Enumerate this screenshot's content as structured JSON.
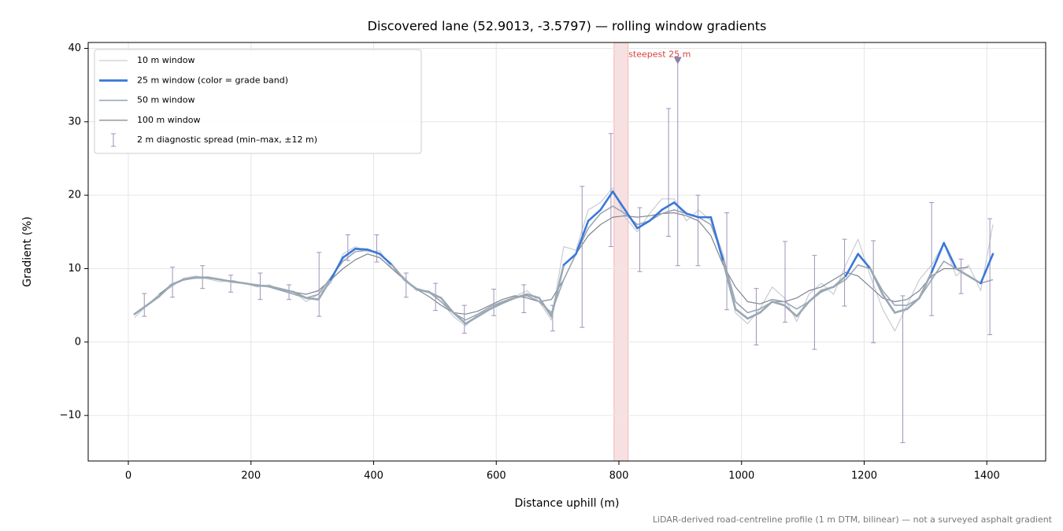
{
  "chart_data": {
    "type": "line",
    "title": "Discovered lane (52.9013, -3.5797) — rolling window gradients",
    "x_label": "Distance uphill (m)",
    "y_label": "Gradient (%)",
    "footnote": "LiDAR-derived road-centreline profile (1 m DTM, bilinear) — not a surveyed asphalt gradient",
    "xlim": [
      -65.5,
      1496
    ],
    "ylim": [
      -16.2,
      40.8
    ],
    "xticks": [
      0,
      200,
      400,
      600,
      800,
      1000,
      1200,
      1400
    ],
    "yticks": [
      {
        "value": -10,
        "label": "−10"
      },
      0,
      10,
      20,
      30,
      40
    ],
    "grid": true,
    "legend": "upper left",
    "x": [
      10,
      30,
      50,
      70,
      90,
      110,
      130,
      150,
      170,
      190,
      210,
      230,
      250,
      270,
      290,
      310,
      330,
      350,
      370,
      390,
      410,
      430,
      450,
      470,
      490,
      510,
      530,
      550,
      570,
      590,
      610,
      630,
      650,
      670,
      690,
      710,
      730,
      750,
      770,
      790,
      810,
      830,
      850,
      870,
      890,
      910,
      930,
      950,
      970,
      990,
      1010,
      1030,
      1050,
      1070,
      1090,
      1110,
      1130,
      1150,
      1170,
      1190,
      1210,
      1230,
      1250,
      1270,
      1290,
      1310,
      1330,
      1350,
      1370,
      1390,
      1410
    ],
    "series": [
      {
        "name": "10 m window",
        "color": "#c6cdd6",
        "values": [
          3.3,
          5.0,
          6.5,
          7.5,
          8.7,
          9.0,
          8.6,
          8.2,
          8.4,
          8.0,
          7.5,
          7.8,
          7.0,
          6.9,
          5.5,
          6.5,
          8.0,
          12.0,
          13.0,
          12.3,
          12.4,
          10.0,
          8.8,
          7.0,
          7.0,
          5.5,
          3.5,
          2.2,
          3.8,
          4.5,
          5.5,
          6.2,
          7.0,
          5.5,
          3.0,
          13.0,
          12.5,
          18.0,
          19.0,
          21.0,
          17.0,
          15.0,
          17.5,
          19.5,
          19.5,
          16.5,
          18.0,
          16.5,
          12.0,
          4.0,
          2.5,
          4.5,
          7.5,
          6.0,
          2.8,
          6.5,
          8.0,
          6.5,
          10.5,
          14.0,
          9.0,
          4.5,
          1.5,
          5.0,
          8.5,
          10.5,
          13.5,
          9.0,
          10.5,
          7.0,
          16.0
        ]
      },
      {
        "name": "100 m window",
        "color": "#7f8590",
        "values": [
          null,
          null,
          6.5,
          7.8,
          8.5,
          8.7,
          8.7,
          8.5,
          8.3,
          8.0,
          7.8,
          7.6,
          7.2,
          6.8,
          6.5,
          7.0,
          8.5,
          10.0,
          11.2,
          12.0,
          11.5,
          10.0,
          8.5,
          7.2,
          6.2,
          5.0,
          4.0,
          3.8,
          4.2,
          5.0,
          5.8,
          6.3,
          6.0,
          5.5,
          5.8,
          8.5,
          12.0,
          14.5,
          16.0,
          17.0,
          17.2,
          17.0,
          17.2,
          17.5,
          17.6,
          17.2,
          16.5,
          14.5,
          10.5,
          7.5,
          5.5,
          5.2,
          5.8,
          5.5,
          6.0,
          7.0,
          7.5,
          8.5,
          9.5,
          9.0,
          7.5,
          6.0,
          5.5,
          5.8,
          7.0,
          9.0,
          10.0,
          10.0,
          10.2,
          null,
          null
        ]
      },
      {
        "name": "50 m window",
        "color": "#9ba7b5",
        "values": [
          3.8,
          5.0,
          6.3,
          7.7,
          8.5,
          8.8,
          8.8,
          8.5,
          8.2,
          8.0,
          7.8,
          7.5,
          7.0,
          6.5,
          6.0,
          6.5,
          8.8,
          11.0,
          12.3,
          12.5,
          12.0,
          10.5,
          8.5,
          7.3,
          6.8,
          5.5,
          4.0,
          3.0,
          3.8,
          4.8,
          5.5,
          6.0,
          6.3,
          5.5,
          4.0,
          8.5,
          12.0,
          15.5,
          17.5,
          18.5,
          17.5,
          16.0,
          16.5,
          17.5,
          18.0,
          17.5,
          17.0,
          16.0,
          11.5,
          5.5,
          4.0,
          4.5,
          5.5,
          5.5,
          4.5,
          5.5,
          6.8,
          7.5,
          8.5,
          10.5,
          10.0,
          7.0,
          5.0,
          5.0,
          6.0,
          8.5,
          11.0,
          10.0,
          9.0,
          8.0,
          8.5
        ]
      },
      {
        "name": "25 m window (color = grade band)",
        "color": "#3a78d8",
        "base_color": "#9aa8b4",
        "grade_bands": [
          {
            "from": 10,
            "color": "#3a78d8"
          },
          {
            "from": 20,
            "color": "#e8900c"
          }
        ],
        "values": [
          3.8,
          5.0,
          6.2,
          7.8,
          8.5,
          8.8,
          8.8,
          8.5,
          8.2,
          8.0,
          7.7,
          7.6,
          7.2,
          6.8,
          6.0,
          5.8,
          8.5,
          11.5,
          12.7,
          12.6,
          12.0,
          10.5,
          8.5,
          7.2,
          6.8,
          6.0,
          4.0,
          2.5,
          3.5,
          4.5,
          5.3,
          6.0,
          6.5,
          6.0,
          3.5,
          10.5,
          12.0,
          16.5,
          18.0,
          20.5,
          18.0,
          15.5,
          16.5,
          18.0,
          19.0,
          17.5,
          17.0,
          17.0,
          11.0,
          4.5,
          3.2,
          4.0,
          5.5,
          5.0,
          3.5,
          5.5,
          7.0,
          7.5,
          9.0,
          12.0,
          10.0,
          6.5,
          4.0,
          4.5,
          6.0,
          9.5,
          13.5,
          10.0,
          9.0,
          8.0,
          12.0
        ]
      }
    ],
    "legend_order": [
      0,
      3,
      2,
      1
    ],
    "spread": {
      "name": "2 m diagnostic spread (min–max, ±12 m)",
      "color": "#9e93b8",
      "x": [
        26,
        72,
        121,
        167,
        215,
        262,
        311,
        358,
        405,
        453,
        501,
        548,
        596,
        645,
        692,
        740,
        787,
        834,
        881,
        896,
        929,
        976,
        1024,
        1071,
        1119,
        1168,
        1215,
        1263,
        1310,
        1358,
        1405
      ],
      "low": [
        3.5,
        6.1,
        7.3,
        6.8,
        5.8,
        5.8,
        3.5,
        11.1,
        10.9,
        6.1,
        4.3,
        1.2,
        3.6,
        4.0,
        1.5,
        2.0,
        13.0,
        9.6,
        14.4,
        10.4,
        10.4,
        4.4,
        -0.4,
        2.7,
        -1.0,
        4.9,
        -0.1,
        -13.7,
        3.6,
        6.6,
        1.0
      ],
      "high": [
        6.6,
        10.2,
        10.4,
        9.1,
        9.4,
        7.8,
        12.2,
        14.6,
        14.6,
        9.4,
        8.0,
        5.0,
        7.2,
        7.8,
        5.0,
        21.2,
        28.4,
        18.3,
        31.8,
        38.3,
        20.0,
        17.6,
        7.3,
        13.7,
        11.8,
        14.0,
        13.8,
        6.3,
        19.0,
        11.3,
        16.8
      ]
    },
    "highlight": {
      "label": "steepest 25 m",
      "x_range": [
        792,
        815
      ],
      "color": "#d94040"
    },
    "peak_marker": {
      "x": 896,
      "y": 38.3,
      "color": "#8a7fa8"
    }
  }
}
